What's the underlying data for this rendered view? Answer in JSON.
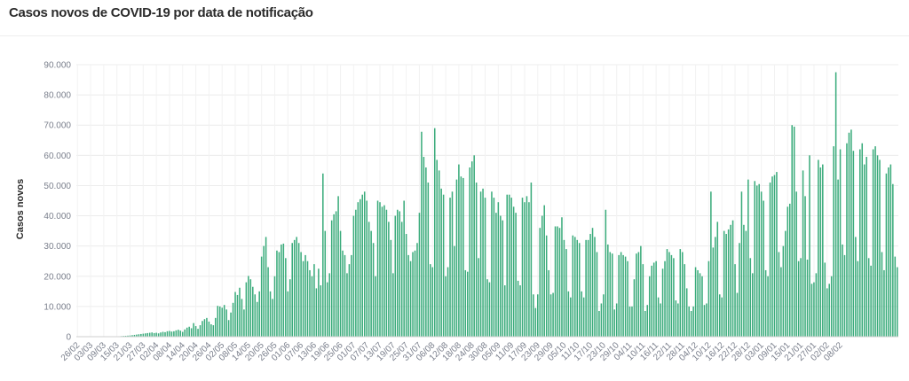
{
  "header": {
    "title": "Casos novos de COVID-19 por data de notificação"
  },
  "chart_data": {
    "type": "bar",
    "title": "Casos novos de COVID-19 por data de notificação",
    "xlabel": "",
    "ylabel": "Casos novos",
    "ylim": [
      0,
      90000
    ],
    "yticks": [
      "0",
      "10.000",
      "20.000",
      "30.000",
      "40.000",
      "50.000",
      "60.000",
      "70.000",
      "80.000",
      "90.000"
    ],
    "xtick_labels": [
      "26/02",
      "03/03",
      "09/03",
      "15/03",
      "21/03",
      "27/03",
      "02/04",
      "08/04",
      "14/04",
      "20/04",
      "26/04",
      "02/05",
      "08/05",
      "14/05",
      "20/05",
      "26/05",
      "01/06",
      "07/06",
      "13/06",
      "19/06",
      "25/06",
      "01/07",
      "07/07",
      "13/07",
      "19/07",
      "25/07",
      "31/07",
      "06/08",
      "12/08",
      "18/08",
      "24/08",
      "30/08",
      "05/09",
      "11/09",
      "17/09",
      "23/09",
      "29/09",
      "05/10",
      "11/10",
      "17/10",
      "23/10",
      "29/10",
      "04/11",
      "10/11",
      "16/11",
      "22/11",
      "28/11",
      "04/12",
      "10/12",
      "16/12",
      "22/12",
      "28/12",
      "03/01",
      "09/01",
      "15/01",
      "21/01",
      "27/01",
      "02/02",
      "08/02"
    ],
    "bar_color": "#3aab7b",
    "grid": true,
    "legend": "none",
    "start_date": "26/02",
    "weekly": [
      [
        0,
        0,
        0,
        0,
        0,
        0,
        0
      ],
      [
        0,
        0,
        0,
        0,
        5,
        10,
        20
      ],
      [
        30,
        40,
        60,
        80,
        100,
        150,
        200
      ],
      [
        250,
        300,
        350,
        400,
        500,
        600,
        700
      ],
      [
        800,
        900,
        1000,
        1100,
        1200,
        1300,
        1400
      ],
      [
        1200,
        1300,
        1100,
        1400,
        1600,
        1500,
        1800
      ],
      [
        1900,
        1700,
        1800,
        2100,
        2300,
        2000,
        1600
      ],
      [
        2400,
        3000,
        3300,
        2800,
        4500,
        3500,
        2600
      ],
      [
        3800,
        5200,
        5800,
        6200,
        5000,
        4100,
        3800
      ],
      [
        6200,
        10200,
        10000,
        9600,
        10500,
        9000,
        5500
      ],
      [
        8000,
        11200,
        14800,
        13800,
        16200,
        12500,
        9000
      ],
      [
        18000,
        20100,
        19000,
        16500,
        14000,
        11500,
        15000
      ],
      [
        26500,
        30000,
        33000,
        23000,
        15000,
        12500,
        20000
      ],
      [
        28500,
        28000,
        30500,
        30800,
        26000,
        15000,
        19000
      ],
      [
        31000,
        32000,
        33000,
        31000,
        28000,
        25000,
        27000
      ],
      [
        25000,
        22000,
        20000,
        24000,
        16000,
        22500,
        17000
      ],
      [
        54000,
        35000,
        18000,
        21000,
        38500,
        40500,
        41500
      ],
      [
        46500,
        35000,
        28500,
        27000,
        21000,
        24000,
        27000
      ],
      [
        40000,
        42000,
        44500,
        45500,
        47000,
        48000,
        45000
      ],
      [
        38000,
        35000,
        31000,
        20000,
        45000,
        44500,
        43000
      ],
      [
        43500,
        42000,
        38000,
        32000,
        21000,
        40000,
        42000
      ],
      [
        41500,
        38000,
        45000,
        34000,
        27000,
        25000,
        28000
      ],
      [
        28500,
        31000,
        41000,
        67800,
        59500,
        56000,
        51000
      ],
      [
        24000,
        23000,
        69000,
        58500,
        55000,
        49000,
        47000
      ],
      [
        20000,
        23000,
        46000,
        48000,
        30000,
        52000,
        57000
      ],
      [
        53000,
        52500,
        22000,
        21500,
        56000,
        58000,
        60000
      ],
      [
        51000,
        26000,
        48000,
        49000,
        46000,
        19000,
        18000
      ],
      [
        48000,
        46000,
        41000,
        44500,
        40000,
        38500,
        17000
      ],
      [
        47000,
        47000,
        46000,
        43000,
        41000,
        18500,
        17000
      ],
      [
        46000,
        44500,
        46500,
        44500,
        51000,
        14000,
        9500
      ],
      [
        14000,
        36000,
        40000,
        43500,
        33500,
        22000,
        14000
      ],
      [
        14500,
        36500,
        36500,
        36000,
        39500,
        32000,
        29000
      ],
      [
        15000,
        13000,
        33500,
        33000,
        32000,
        31000,
        15000
      ],
      [
        13000,
        32000,
        32000,
        34000,
        36000,
        33000,
        28000
      ],
      [
        8500,
        11000,
        14000,
        42000,
        30500,
        28000,
        27500
      ],
      [
        9000,
        11000,
        27000,
        28000,
        27000,
        26500,
        25000
      ],
      [
        10000,
        10000,
        19000,
        27500,
        28000,
        30000,
        24000
      ],
      [
        8500,
        10500,
        20000,
        23500,
        24500,
        25000,
        13000
      ],
      [
        11000,
        22500,
        25000,
        29000,
        28000,
        27000,
        26000
      ],
      [
        12000,
        11000,
        29000,
        28000,
        24000,
        16000,
        10000
      ],
      [
        8500,
        10000,
        23000,
        22000,
        21000,
        20000,
        10500
      ]
    ],
    "tail": [
      11000,
      25000,
      48000,
      29500,
      33000,
      38000,
      14000,
      13000,
      35000,
      34000,
      35500,
      37000,
      38500,
      24000,
      14500,
      31000,
      48000,
      37000,
      35000,
      52000,
      26000,
      21000,
      51500,
      50000,
      50500,
      48000,
      45000,
      22000,
      20000,
      51000,
      53000,
      53500,
      54500,
      28000,
      23000,
      30000,
      35000,
      43000,
      44000,
      70000,
      69500,
      48000,
      25000,
      26000,
      55000,
      46500,
      25500,
      60000,
      17500,
      18000,
      21000,
      58500,
      56000,
      57000,
      24500,
      16000,
      17500,
      20000,
      63000,
      87500,
      52000,
      62000,
      30500,
      27000,
      64000,
      67500,
      68500,
      61500,
      33000,
      25000,
      62000,
      64000,
      57000,
      59500,
      26000,
      23500,
      62000,
      63000,
      60000,
      58500,
      28000,
      22000,
      54000,
      56000,
      57000,
      50500,
      26500,
      23000
    ]
  }
}
